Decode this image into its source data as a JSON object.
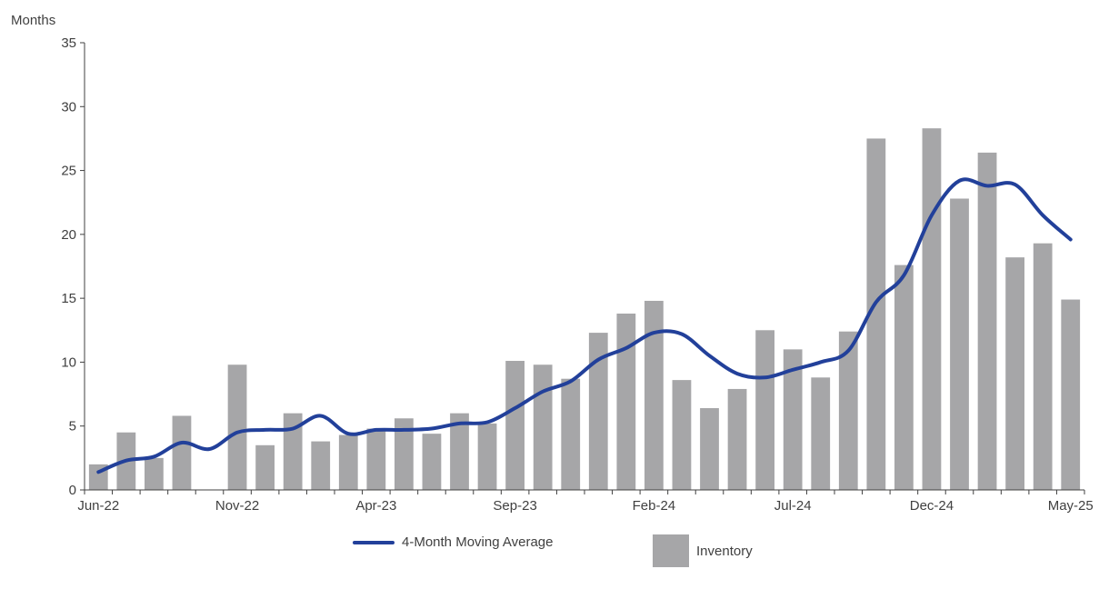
{
  "chart_data": {
    "type": "bar",
    "title": "",
    "xlabel": "",
    "ylabel": "Months",
    "ylim": [
      0,
      35
    ],
    "y_ticks": [
      0,
      5,
      10,
      15,
      20,
      25,
      30,
      35
    ],
    "x_tick_labels": [
      "Jun-22",
      "Nov-22",
      "Apr-23",
      "Sep-23",
      "Feb-24",
      "Jul-24",
      "Dec-24",
      "May-25"
    ],
    "categories": [
      "Jun-22",
      "Jul-22",
      "Aug-22",
      "Sep-22",
      "Oct-22",
      "Nov-22",
      "Dec-22",
      "Jan-23",
      "Feb-23",
      "Mar-23",
      "Apr-23",
      "May-23",
      "Jun-23",
      "Jul-23",
      "Aug-23",
      "Sep-23",
      "Oct-23",
      "Nov-23",
      "Dec-23",
      "Jan-24",
      "Feb-24",
      "Mar-24",
      "Apr-24",
      "May-24",
      "Jun-24",
      "Jul-24",
      "Aug-24",
      "Sep-24",
      "Oct-24",
      "Nov-24",
      "Dec-24",
      "Jan-25",
      "Feb-25",
      "Mar-25",
      "Apr-25",
      "May-25"
    ],
    "series": [
      {
        "name": "Inventory",
        "type": "bar",
        "color": "#a6a6a8",
        "values": [
          2.0,
          4.5,
          2.5,
          5.8,
          0,
          9.8,
          3.5,
          6.0,
          3.8,
          4.3,
          4.8,
          5.6,
          4.4,
          6.0,
          5.2,
          10.1,
          9.8,
          8.7,
          12.3,
          13.8,
          14.8,
          8.6,
          6.4,
          7.9,
          12.5,
          11.0,
          8.8,
          12.4,
          27.5,
          17.6,
          28.3,
          22.8,
          26.4,
          18.2,
          19.3,
          14.9
        ]
      },
      {
        "name": "4-Month Moving Average",
        "type": "line",
        "color": "#22409a",
        "values": [
          1.4,
          2.3,
          2.6,
          3.7,
          3.2,
          4.5,
          4.7,
          4.8,
          5.8,
          4.4,
          4.7,
          4.7,
          4.8,
          5.2,
          5.3,
          6.4,
          7.7,
          8.5,
          10.2,
          11.1,
          12.3,
          12.2,
          10.5,
          9.1,
          8.8,
          9.4,
          10.0,
          10.9,
          14.7,
          16.8,
          21.5,
          24.2,
          23.8,
          23.9,
          21.5,
          19.6
        ]
      }
    ],
    "grid": false,
    "legend_position": "bottom"
  }
}
